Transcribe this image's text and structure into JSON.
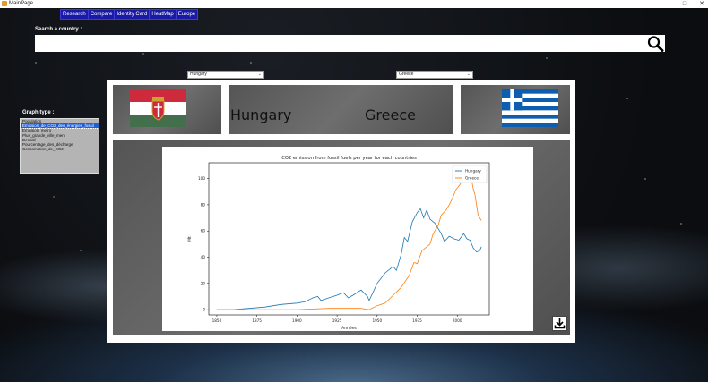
{
  "window": {
    "title": "MainPage",
    "minimize": "—",
    "maximize": "□",
    "close": "✕"
  },
  "nav": {
    "items": [
      "Research",
      "Compare",
      "Identity Card",
      "HeatMap",
      "Europe"
    ]
  },
  "search": {
    "label": "Search a country :",
    "value": "",
    "placeholder": ""
  },
  "compare": {
    "left_country": "Hungary",
    "right_country": "Greece"
  },
  "graph_type": {
    "label": "Graph type :",
    "options": [
      "Population",
      "Emission_de_CO2_des_énergies_fossil",
      "Emission_metro",
      "Plus_grande_ville_ment",
      "Densité",
      "Pourcentage_des_décharge",
      "Consomation_de_CO2"
    ],
    "selected_index": 1
  },
  "colors": {
    "nav_bg": "#1a1aa6",
    "hungary_line": "#1f77b4",
    "greece_line": "#ff7f0e"
  },
  "icons": {
    "search": "magnifier-icon",
    "download": "download-icon"
  },
  "chart_data": {
    "type": "line",
    "title": "CO2 emission from fossil fuels per year for each countries",
    "xlabel": "Années",
    "ylabel": "Mt",
    "xlim": [
      1845,
      2020
    ],
    "ylim": [
      -4,
      112
    ],
    "x_ticks": [
      1850,
      1875,
      1900,
      1925,
      1950,
      1975,
      2000
    ],
    "y_ticks": [
      0,
      20,
      40,
      60,
      80,
      100
    ],
    "legend_position": "top-right",
    "series": [
      {
        "name": "Hungary",
        "points": [
          [
            1850,
            0
          ],
          [
            1860,
            0
          ],
          [
            1870,
            1
          ],
          [
            1880,
            2
          ],
          [
            1890,
            4
          ],
          [
            1900,
            5
          ],
          [
            1905,
            6
          ],
          [
            1910,
            9
          ],
          [
            1913,
            10
          ],
          [
            1915,
            7
          ],
          [
            1920,
            9
          ],
          [
            1925,
            11
          ],
          [
            1929,
            13
          ],
          [
            1932,
            9
          ],
          [
            1935,
            11
          ],
          [
            1940,
            15
          ],
          [
            1944,
            10
          ],
          [
            1945,
            7
          ],
          [
            1947,
            12
          ],
          [
            1950,
            20
          ],
          [
            1955,
            28
          ],
          [
            1960,
            33
          ],
          [
            1962,
            30
          ],
          [
            1965,
            42
          ],
          [
            1967,
            55
          ],
          [
            1969,
            52
          ],
          [
            1972,
            67
          ],
          [
            1975,
            74
          ],
          [
            1977,
            77
          ],
          [
            1979,
            70
          ],
          [
            1981,
            76
          ],
          [
            1983,
            69
          ],
          [
            1986,
            66
          ],
          [
            1988,
            62
          ],
          [
            1990,
            58
          ],
          [
            1992,
            52
          ],
          [
            1995,
            56
          ],
          [
            1998,
            54
          ],
          [
            2001,
            53
          ],
          [
            2004,
            58
          ],
          [
            2006,
            54
          ],
          [
            2008,
            53
          ],
          [
            2010,
            47
          ],
          [
            2012,
            44
          ],
          [
            2014,
            45
          ],
          [
            2015,
            48
          ]
        ]
      },
      {
        "name": "Greece",
        "points": [
          [
            1850,
            0
          ],
          [
            1900,
            0
          ],
          [
            1920,
            1
          ],
          [
            1930,
            1
          ],
          [
            1940,
            1
          ],
          [
            1945,
            0
          ],
          [
            1950,
            3
          ],
          [
            1955,
            5
          ],
          [
            1960,
            11
          ],
          [
            1965,
            17
          ],
          [
            1970,
            26
          ],
          [
            1973,
            36
          ],
          [
            1975,
            35
          ],
          [
            1978,
            45
          ],
          [
            1980,
            47
          ],
          [
            1983,
            50
          ],
          [
            1985,
            58
          ],
          [
            1988,
            64
          ],
          [
            1990,
            72
          ],
          [
            1993,
            76
          ],
          [
            1995,
            80
          ],
          [
            1997,
            85
          ],
          [
            1999,
            91
          ],
          [
            2002,
            96
          ],
          [
            2004,
            101
          ],
          [
            2006,
            104
          ],
          [
            2007,
            107
          ],
          [
            2008,
            105
          ],
          [
            2010,
            92
          ],
          [
            2011,
            88
          ],
          [
            2012,
            80
          ],
          [
            2013,
            72
          ],
          [
            2014,
            70
          ],
          [
            2015,
            68
          ]
        ]
      }
    ]
  }
}
